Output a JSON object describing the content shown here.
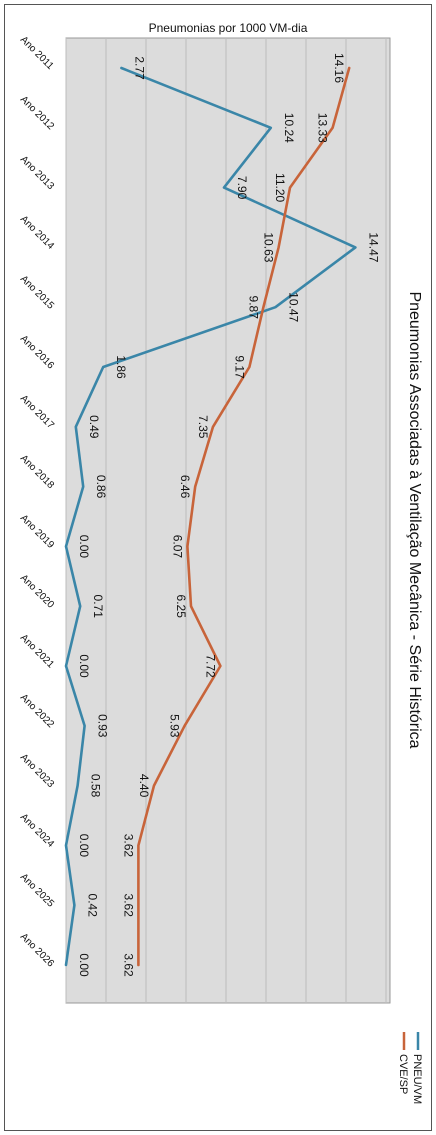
{
  "chart_data": {
    "type": "line",
    "title": "Pneumonias por 1000 VM-dia",
    "side_title": "Pneumonias Associadas à Ventilação Mecânica - Série Histórica",
    "categories": [
      "Ano 2011",
      "Ano 2012",
      "Ano 2013",
      "Ano 2014",
      "Ano 2015",
      "Ano 2016",
      "Ano 2017",
      "Ano 2018",
      "Ano 2019",
      "Ano 2020",
      "Ano 2021",
      "Ano 2022",
      "Ano 2023",
      "Ano 2024",
      "Ano 2025",
      "Ano 2026"
    ],
    "series": [
      {
        "name": "PNEU/VM",
        "color": "#3a86a8",
        "values": [
          2.77,
          10.24,
          7.9,
          14.47,
          10.47,
          1.86,
          0.49,
          0.86,
          0.0,
          0.71,
          0.0,
          0.93,
          0.58,
          0.0,
          0.42,
          0.0
        ],
        "labels": [
          "2.77",
          "10.24",
          "7.90",
          "14.47",
          "10.47",
          "1.86",
          "0.49",
          "0.86",
          "0.00",
          "0.71",
          "0.00",
          "0.93",
          "0.58",
          "0.00",
          "0.42",
          "0.00"
        ]
      },
      {
        "name": "CVE/SP",
        "color": "#c8643a",
        "values": [
          14.16,
          13.33,
          11.2,
          10.63,
          9.87,
          9.17,
          7.35,
          6.46,
          6.07,
          6.25,
          7.72,
          5.93,
          4.4,
          3.62,
          3.62,
          3.62
        ],
        "labels": [
          "14.16",
          "13.33",
          "11.20",
          "10.63",
          "9.87",
          "9.17",
          "7.35",
          "6.46",
          "6.07",
          "6.25",
          "7.72",
          "5.93",
          "4.40",
          "3.62",
          "3.62",
          "3.62"
        ]
      }
    ],
    "ylim": [
      0,
      16
    ],
    "grid": true,
    "legend": "bottom",
    "orientation": "rotated-90-clockwise"
  }
}
